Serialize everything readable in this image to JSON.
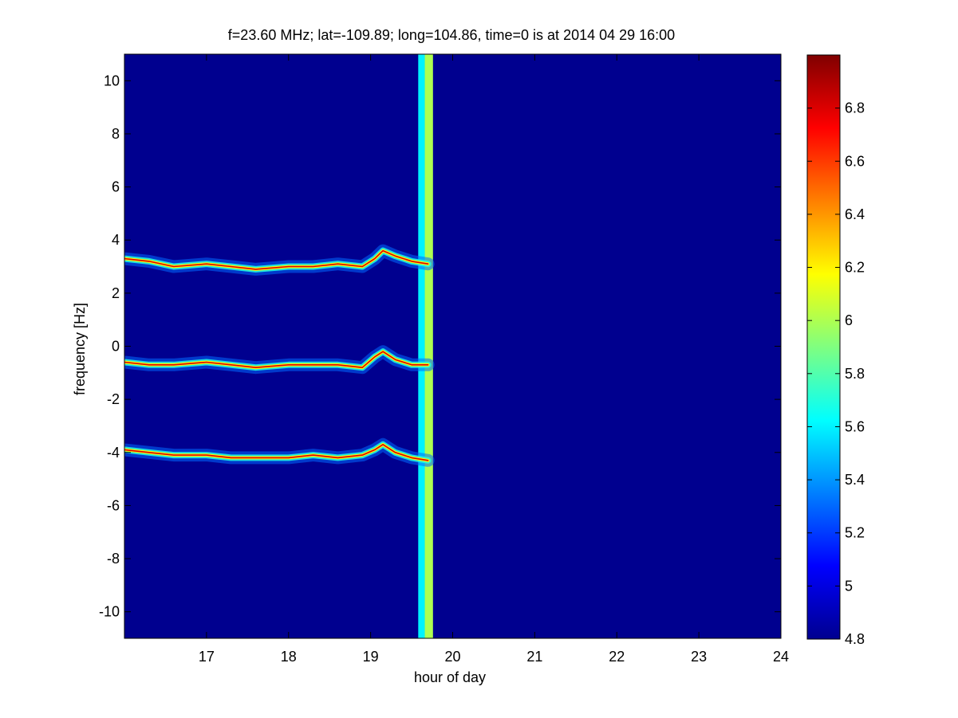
{
  "chart_data": {
    "type": "heatmap",
    "title": "f=23.60 MHz;  lat=-109.89; long=104.86, time=0 is at 2014 04 29 16:00",
    "xlabel": "hour of day",
    "ylabel": "frequency [Hz]",
    "xlim": [
      16.0,
      24.0
    ],
    "ylim": [
      -11.0,
      11.0
    ],
    "xticks": [
      "17",
      "18",
      "19",
      "20",
      "21",
      "22",
      "23",
      "24"
    ],
    "xtick_values": [
      17,
      18,
      19,
      20,
      21,
      22,
      23,
      24
    ],
    "yticks": [
      "10",
      "8",
      "6",
      "4",
      "2",
      "0",
      "-2",
      "-4",
      "-6",
      "-8",
      "-10"
    ],
    "ytick_values": [
      10,
      8,
      6,
      4,
      2,
      0,
      -2,
      -4,
      -6,
      -8,
      -10
    ],
    "colorbar": {
      "range": [
        4.8,
        7.0
      ],
      "ticks": [
        "6.8",
        "6.6",
        "6.4",
        "6.2",
        "6",
        "5.8",
        "5.6",
        "5.4",
        "5.2",
        "5",
        "4.8"
      ],
      "tick_values": [
        6.8,
        6.6,
        6.4,
        6.2,
        6.0,
        5.8,
        5.6,
        5.4,
        5.2,
        5.0,
        4.8
      ],
      "colormap": "jet"
    },
    "background_value": 4.8,
    "echo_traces": [
      {
        "hours": [
          16.0,
          16.3,
          16.6,
          17.0,
          17.3,
          17.6,
          18.0,
          18.3,
          18.6,
          18.9,
          19.05,
          19.15,
          19.3,
          19.5,
          19.7
        ],
        "freq": [
          3.3,
          3.2,
          3.0,
          3.1,
          3.0,
          2.9,
          3.0,
          3.0,
          3.1,
          3.0,
          3.3,
          3.6,
          3.4,
          3.2,
          3.1
        ]
      },
      {
        "hours": [
          16.0,
          16.3,
          16.6,
          17.0,
          17.3,
          17.6,
          18.0,
          18.3,
          18.6,
          18.9,
          19.05,
          19.15,
          19.3,
          19.5,
          19.7
        ],
        "freq": [
          -0.6,
          -0.7,
          -0.7,
          -0.6,
          -0.7,
          -0.8,
          -0.7,
          -0.7,
          -0.7,
          -0.8,
          -0.4,
          -0.2,
          -0.5,
          -0.7,
          -0.7
        ]
      },
      {
        "hours": [
          16.0,
          16.3,
          16.6,
          17.0,
          17.3,
          17.6,
          18.0,
          18.3,
          18.6,
          18.9,
          19.05,
          19.15,
          19.3,
          19.5,
          19.7
        ],
        "freq": [
          -3.9,
          -4.0,
          -4.1,
          -4.1,
          -4.2,
          -4.2,
          -4.2,
          -4.1,
          -4.2,
          -4.1,
          -3.9,
          -3.7,
          -4.0,
          -4.2,
          -4.3
        ]
      }
    ],
    "broadband_bands": [
      {
        "hour_start": 19.58,
        "hour_end": 19.66,
        "value": 5.6
      },
      {
        "hour_start": 19.66,
        "hour_end": 19.76,
        "value": 6.0
      }
    ],
    "data_end_hour": 19.76,
    "grid": false
  }
}
